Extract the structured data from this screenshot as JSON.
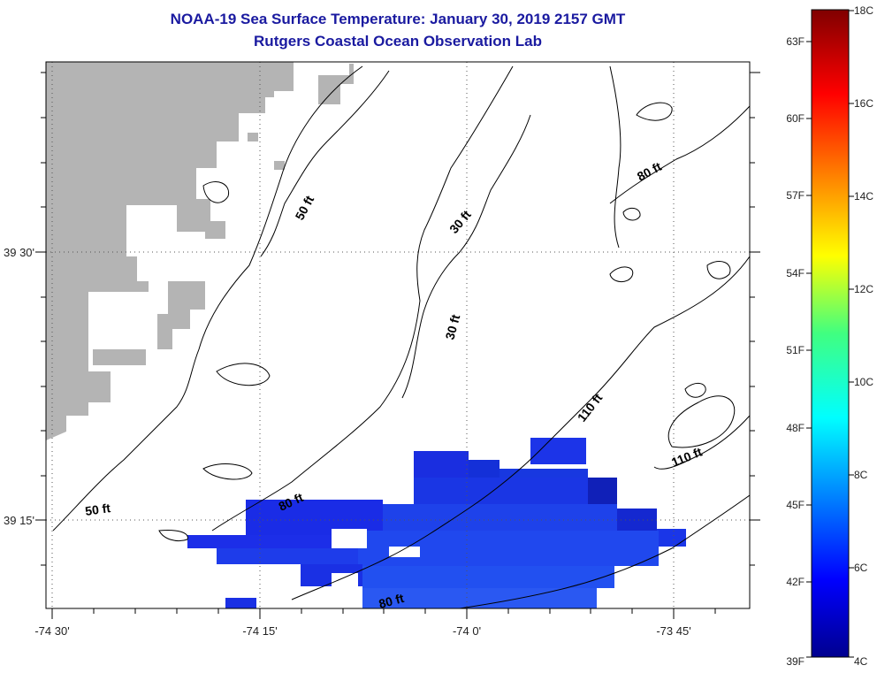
{
  "title": {
    "line1": "NOAA-19 Sea Surface Temperature:  January 30, 2019 2157 GMT",
    "line2": "Rutgers Coastal Ocean Observation Lab"
  },
  "map": {
    "lon_labels": [
      "-74 30'",
      "-74 15'",
      "-74 0'",
      "-73 45'"
    ],
    "lat_labels": [
      "39 30'",
      "39 15'"
    ],
    "depth_contours": [
      {
        "label": "50 ft"
      },
      {
        "label": "30 ft"
      },
      {
        "label": "80 ft"
      },
      {
        "label": "30 ft"
      },
      {
        "label": "110 ft"
      },
      {
        "label": "110 ft"
      },
      {
        "label": "50 ft"
      },
      {
        "label": "80 ft"
      },
      {
        "label": "80 ft"
      }
    ],
    "land_color": "#b4b4b4",
    "contour_color": "#000000"
  },
  "colorbar": {
    "celsius_labels": [
      "18C",
      "16C",
      "14C",
      "12C",
      "10C",
      "8C",
      "6C",
      "4C"
    ],
    "fahrenheit_labels": [
      "63F",
      "60F",
      "57F",
      "54F",
      "51F",
      "48F",
      "45F",
      "42F",
      "39F"
    ],
    "range_c": [
      4,
      18
    ]
  }
}
